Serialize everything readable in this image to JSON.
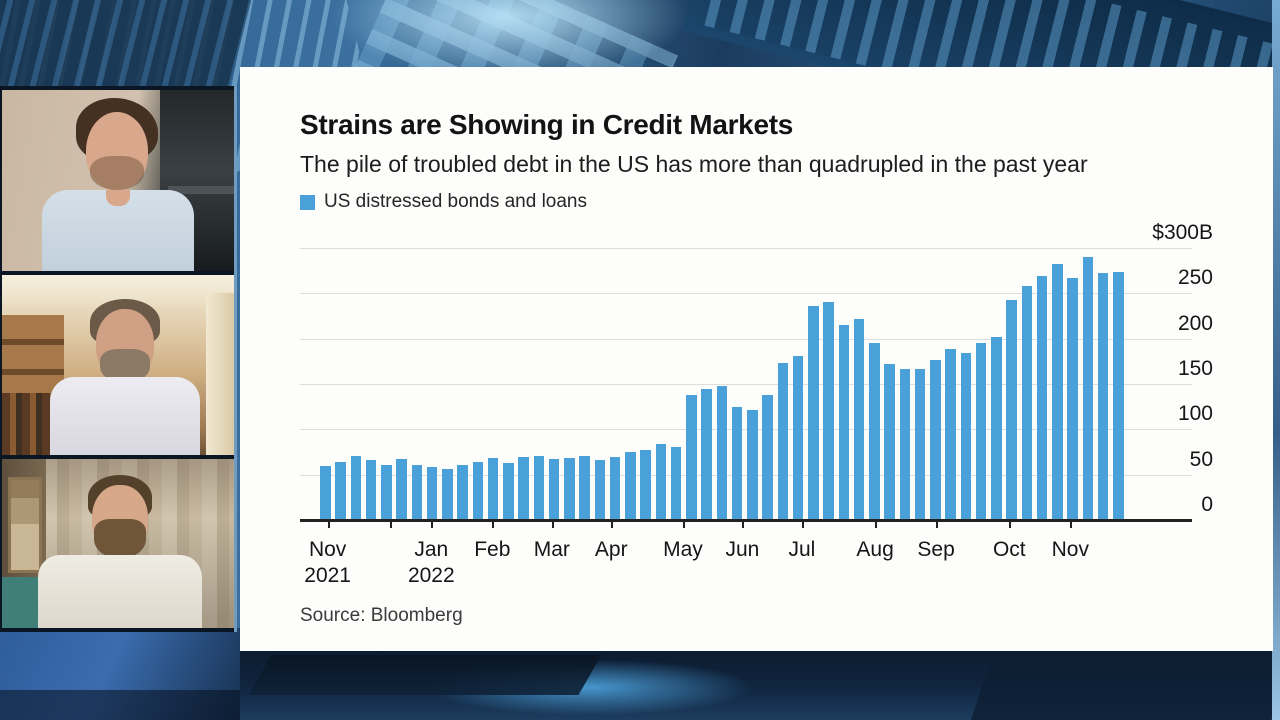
{
  "broadcast": {
    "description": "Bloomberg TV style split screen: three remote video participants beside a data chart",
    "background_accent": "#2e6090",
    "participants": [
      {
        "position": "top",
        "description": "Young man with short dark hair and light stubble in a pale blue shirt, beige wall with dark shelving behind"
      },
      {
        "position": "middle",
        "description": "Man with greying beard in a white shirt, warm-lit room with wooden bookshelf at left"
      },
      {
        "position": "bottom",
        "description": "Man with slicked-back hair and full beard in a white shirt, beige curtains behind, teal chair at left"
      }
    ]
  },
  "chart": {
    "title": "Strains are Showing in Credit Markets",
    "subtitle": "The pile of troubled debt in the US has more than quadrupled in the past year",
    "legend_label": "US distressed bonds and loans",
    "legend_color": "#4aa0d8",
    "source": "Source: Bloomberg"
  },
  "chart_data": {
    "type": "bar",
    "title": "Strains are Showing in Credit Markets",
    "subtitle": "The pile of troubled debt in the US has more than quadrupled in the past year",
    "series_name": "US distressed bonds and loans",
    "unit": "$B",
    "frequency": "weekly",
    "x_range": "Nov 2021 - Nov 2022",
    "ylim": [
      0,
      300
    ],
    "grid": true,
    "value_axis_side": "right",
    "legend_position": "top-left",
    "bar_color": "#4aa0d8",
    "values": [
      60,
      64,
      71,
      66,
      61,
      67,
      61,
      59,
      56,
      61,
      64,
      68,
      63,
      70,
      71,
      67,
      68,
      71,
      66,
      70,
      75,
      77,
      84,
      80,
      138,
      144,
      148,
      125,
      121,
      138,
      173,
      181,
      236,
      240,
      215,
      222,
      195,
      172,
      166,
      166,
      176,
      189,
      184,
      195,
      202,
      243,
      258,
      269,
      282,
      267,
      290,
      272,
      273
    ],
    "y_ticks": [
      {
        "v": 300,
        "label": "$300B"
      },
      {
        "v": 250,
        "label": "250"
      },
      {
        "v": 200,
        "label": "200"
      },
      {
        "v": 150,
        "label": "150"
      },
      {
        "v": 100,
        "label": "100"
      },
      {
        "v": 50,
        "label": "50"
      },
      {
        "v": 0,
        "label": "0"
      }
    ],
    "x_ticks": [
      {
        "label": "Nov",
        "sublabel": "2021",
        "pos": 0.5
      },
      {
        "label": "",
        "sublabel": "",
        "pos": 4.6
      },
      {
        "label": "Jan",
        "sublabel": "2022",
        "pos": 7.3
      },
      {
        "label": "Feb",
        "sublabel": "",
        "pos": 11.3
      },
      {
        "label": "Mar",
        "sublabel": "",
        "pos": 15.2
      },
      {
        "label": "Apr",
        "sublabel": "",
        "pos": 19.1
      },
      {
        "label": "May",
        "sublabel": "",
        "pos": 23.8
      },
      {
        "label": "Jun",
        "sublabel": "",
        "pos": 27.7
      },
      {
        "label": "Jul",
        "sublabel": "",
        "pos": 31.6
      },
      {
        "label": "Aug",
        "sublabel": "",
        "pos": 36.4
      },
      {
        "label": "Sep",
        "sublabel": "",
        "pos": 40.4
      },
      {
        "label": "Oct",
        "sublabel": "",
        "pos": 45.2
      },
      {
        "label": "Nov",
        "sublabel": "",
        "pos": 49.2
      }
    ]
  }
}
